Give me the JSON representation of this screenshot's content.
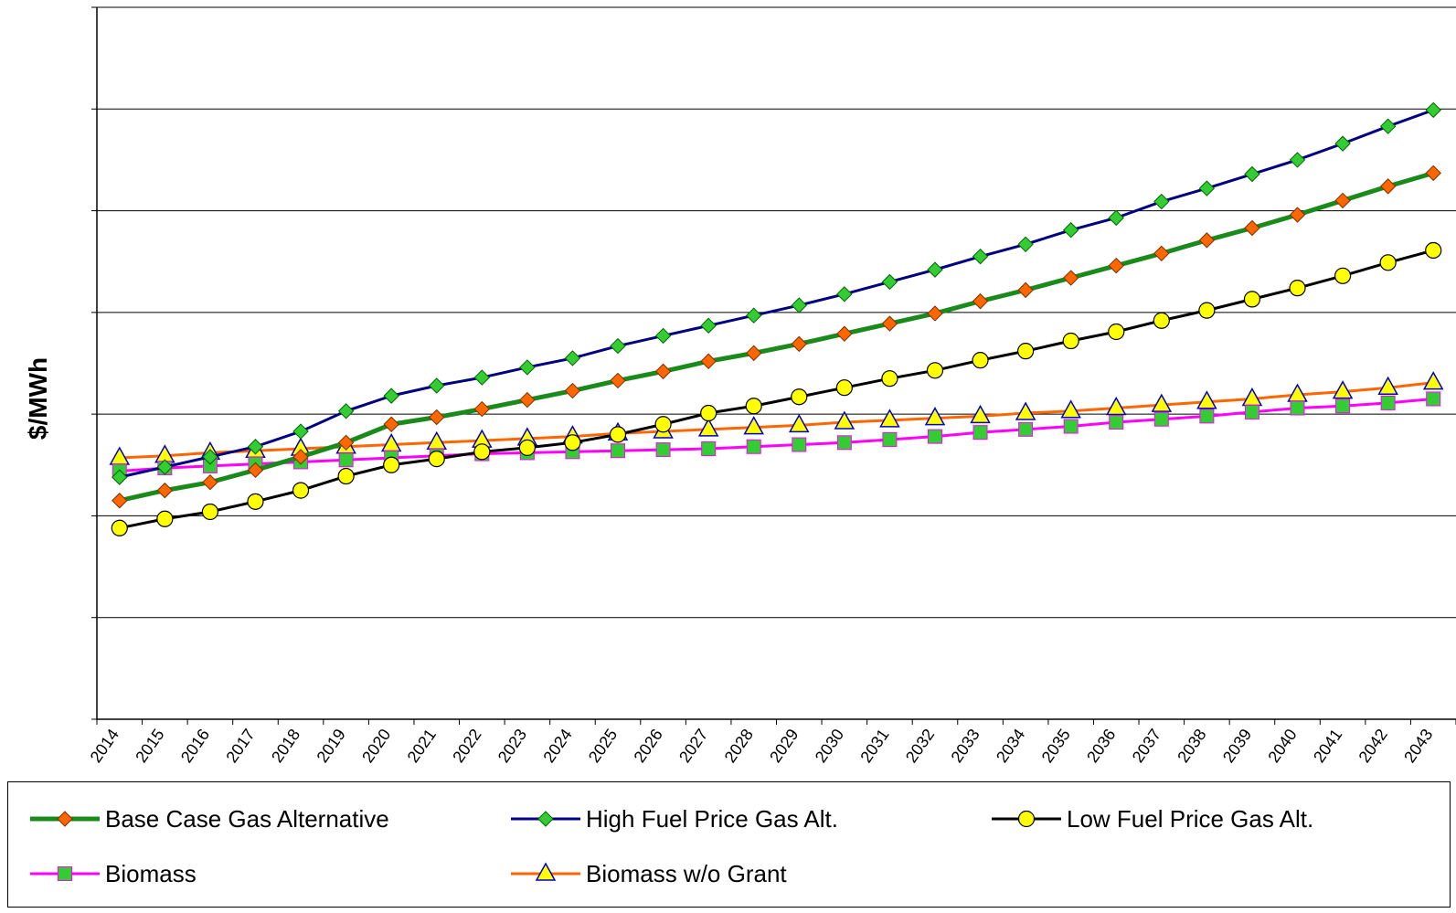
{
  "chart_data": {
    "type": "line",
    "title": "",
    "ylabel": "$/MWh",
    "xlabel": "",
    "categories": [
      "2014",
      "2015",
      "2016",
      "2017",
      "2018",
      "2019",
      "2020",
      "2021",
      "2022",
      "2023",
      "2024",
      "2025",
      "2026",
      "2027",
      "2028",
      "2029",
      "2030",
      "2031",
      "2032",
      "2033",
      "2034",
      "2035",
      "2036",
      "2037",
      "2038",
      "2039",
      "2040",
      "2041",
      "2042",
      "2043"
    ],
    "ylim": [
      0,
      7
    ],
    "y_tick_labels_visible": false,
    "grid": "horizontal",
    "legend_position": "bottom",
    "series": [
      {
        "name": "Base Case Gas Alternative",
        "color": "#1a8a1a",
        "line_width": 5,
        "marker": "diamond",
        "marker_fill": "#ff6600",
        "values": [
          2.15,
          2.25,
          2.33,
          2.45,
          2.58,
          2.72,
          2.9,
          2.97,
          3.05,
          3.14,
          3.23,
          3.33,
          3.42,
          3.52,
          3.6,
          3.69,
          3.79,
          3.89,
          3.99,
          4.11,
          4.22,
          4.34,
          4.46,
          4.58,
          4.71,
          4.83,
          4.96,
          5.1,
          5.24,
          5.37
        ]
      },
      {
        "name": "High Fuel Price Gas Alt.",
        "color": "#000080",
        "line_width": 3,
        "marker": "diamond",
        "marker_fill": "#33cc33",
        "values": [
          2.38,
          2.48,
          2.58,
          2.68,
          2.83,
          3.03,
          3.18,
          3.28,
          3.36,
          3.46,
          3.55,
          3.67,
          3.77,
          3.87,
          3.97,
          4.07,
          4.18,
          4.3,
          4.42,
          4.55,
          4.67,
          4.81,
          4.93,
          5.09,
          5.22,
          5.36,
          5.5,
          5.66,
          5.83,
          5.99
        ]
      },
      {
        "name": "Low Fuel Price Gas Alt.",
        "color": "#000000",
        "line_width": 3,
        "marker": "circle",
        "marker_fill": "#ffff00",
        "values": [
          1.88,
          1.97,
          2.04,
          2.14,
          2.25,
          2.39,
          2.5,
          2.56,
          2.63,
          2.67,
          2.72,
          2.8,
          2.9,
          3.01,
          3.08,
          3.17,
          3.26,
          3.35,
          3.43,
          3.53,
          3.62,
          3.72,
          3.81,
          3.92,
          4.02,
          4.13,
          4.24,
          4.36,
          4.49,
          4.61
        ]
      },
      {
        "name": "Biomass",
        "color": "#ff00ff",
        "line_width": 3,
        "marker": "square",
        "marker_fill": "#33cc33",
        "values": [
          2.44,
          2.47,
          2.49,
          2.51,
          2.53,
          2.55,
          2.57,
          2.59,
          2.61,
          2.62,
          2.63,
          2.64,
          2.65,
          2.66,
          2.68,
          2.7,
          2.72,
          2.75,
          2.78,
          2.82,
          2.85,
          2.88,
          2.92,
          2.95,
          2.98,
          3.02,
          3.06,
          3.08,
          3.11,
          3.15
        ]
      },
      {
        "name": "Biomass w/o Grant",
        "color": "#ff6600",
        "line_width": 3,
        "marker": "triangle",
        "marker_fill": "#ffff00",
        "values": [
          2.57,
          2.59,
          2.62,
          2.64,
          2.66,
          2.68,
          2.7,
          2.72,
          2.74,
          2.76,
          2.78,
          2.81,
          2.83,
          2.85,
          2.87,
          2.89,
          2.92,
          2.94,
          2.96,
          2.98,
          3.01,
          3.03,
          3.06,
          3.09,
          3.12,
          3.15,
          3.19,
          3.22,
          3.26,
          3.31
        ]
      }
    ]
  }
}
